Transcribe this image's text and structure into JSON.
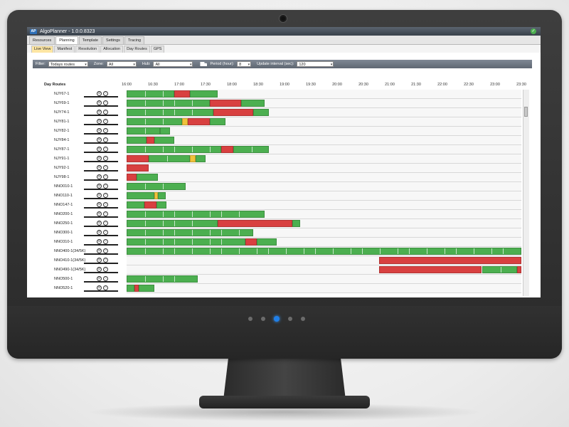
{
  "app": {
    "title": "AlgoPlanner - 1.0.0.8323",
    "logo_text": "AP"
  },
  "main_tabs": [
    {
      "label": "Resources",
      "active": false
    },
    {
      "label": "Planning",
      "active": true
    },
    {
      "label": "Template",
      "active": false
    },
    {
      "label": "Settings",
      "active": false
    },
    {
      "label": "Tracing",
      "active": false
    }
  ],
  "sub_tabs": [
    {
      "label": "Live View",
      "active": true
    },
    {
      "label": "Manifest",
      "active": false
    },
    {
      "label": "Resolution",
      "active": false
    },
    {
      "label": "Allocation",
      "active": false
    },
    {
      "label": "Day Routes",
      "active": false
    },
    {
      "label": "GPS",
      "active": false
    }
  ],
  "filters": {
    "filter_label": "Filter:",
    "filter_value": "Todays routes",
    "zone_label": "Zone:",
    "zone_value": "All",
    "hub_label": "Hub:",
    "hub_value": "All",
    "period_label": "Period (hour):",
    "period_value": "8",
    "interval_label": "Update interval (sec):",
    "interval_value": "120"
  },
  "grid": {
    "header_label": "Day Routes",
    "time_axis": [
      "16:00",
      "16:30",
      "17:00",
      "17:30",
      "18:00",
      "18:30",
      "19:00",
      "19:30",
      "20:00",
      "20:30",
      "21:00",
      "21:30",
      "22:00",
      "22:30",
      "23:00",
      "23:30"
    ],
    "colors": {
      "on_time": "#4caf50",
      "late": "#d84040",
      "warning": "#f0c23a",
      "idle": "#b0b0b0"
    }
  },
  "routes": [
    {
      "name": "NJY67-1",
      "segments": [
        [
          0,
          0.12,
          "g"
        ],
        [
          0.12,
          0.16,
          "r"
        ],
        [
          0.16,
          0.23,
          "g"
        ]
      ]
    },
    {
      "name": "NJY69-1",
      "segments": [
        [
          0,
          0.21,
          "g"
        ],
        [
          0.21,
          0.29,
          "r"
        ],
        [
          0.29,
          0.35,
          "g"
        ]
      ]
    },
    {
      "name": "NJY74-1",
      "segments": [
        [
          0,
          0.22,
          "g"
        ],
        [
          0.22,
          0.32,
          "r"
        ],
        [
          0.32,
          0.36,
          "g"
        ]
      ]
    },
    {
      "name": "NJY81-1",
      "segments": [
        [
          0,
          0.14,
          "g"
        ],
        [
          0.14,
          0.155,
          "y"
        ],
        [
          0.155,
          0.21,
          "r"
        ],
        [
          0.21,
          0.25,
          "g"
        ]
      ]
    },
    {
      "name": "NJY82-1",
      "segments": [
        [
          0,
          0.085,
          "g"
        ],
        [
          0.085,
          0.11,
          "g"
        ]
      ]
    },
    {
      "name": "NJY84-1",
      "segments": [
        [
          0,
          0.05,
          "g"
        ],
        [
          0.05,
          0.07,
          "r"
        ],
        [
          0.07,
          0.12,
          "g"
        ]
      ]
    },
    {
      "name": "NJY87-1",
      "segments": [
        [
          0,
          0.24,
          "g"
        ],
        [
          0.24,
          0.27,
          "r"
        ],
        [
          0.27,
          0.36,
          "g"
        ]
      ]
    },
    {
      "name": "NJY91-1",
      "segments": [
        [
          0,
          0.055,
          "r"
        ],
        [
          0.055,
          0.16,
          "g"
        ],
        [
          0.16,
          0.175,
          "y"
        ],
        [
          0.175,
          0.2,
          "g"
        ]
      ]
    },
    {
      "name": "NJY92-1",
      "segments": [
        [
          0,
          0.055,
          "r"
        ]
      ]
    },
    {
      "name": "NJY98-1",
      "segments": [
        [
          0,
          0.025,
          "r"
        ],
        [
          0.025,
          0.08,
          "g"
        ]
      ]
    },
    {
      "name": "NNO010-1",
      "segments": [
        [
          0,
          0.15,
          "g"
        ]
      ]
    },
    {
      "name": "NNO110-1",
      "segments": [
        [
          0,
          0.07,
          "g"
        ],
        [
          0.07,
          0.08,
          "y"
        ],
        [
          0.08,
          0.1,
          "g"
        ]
      ]
    },
    {
      "name": "NNO147-1",
      "segments": [
        [
          0,
          0.045,
          "g"
        ],
        [
          0.045,
          0.075,
          "r"
        ],
        [
          0.075,
          0.1,
          "g"
        ]
      ]
    },
    {
      "name": "NNO200-1",
      "segments": [
        [
          0,
          0.35,
          "g"
        ]
      ]
    },
    {
      "name": "NNO250-1",
      "segments": [
        [
          0,
          0.23,
          "g"
        ],
        [
          0.23,
          0.42,
          "r"
        ],
        [
          0.42,
          0.44,
          "g"
        ]
      ]
    },
    {
      "name": "NNO300-1",
      "segments": [
        [
          0,
          0.32,
          "g"
        ]
      ]
    },
    {
      "name": "NNO310-1",
      "segments": [
        [
          0,
          0.3,
          "g"
        ],
        [
          0.3,
          0.33,
          "r"
        ],
        [
          0.33,
          0.38,
          "g"
        ]
      ]
    },
    {
      "name": "NNO400-1(34/5K)",
      "segments": [
        [
          0,
          1,
          "g"
        ]
      ]
    },
    {
      "name": "NNO410-1(34/5K)",
      "segments": [
        [
          0.64,
          1,
          "r"
        ]
      ]
    },
    {
      "name": "NNO490-1(34/5K)",
      "segments": [
        [
          0.64,
          0.9,
          "r"
        ],
        [
          0.9,
          0.99,
          "g"
        ],
        [
          0.99,
          1,
          "r"
        ]
      ]
    },
    {
      "name": "NNO500-1",
      "segments": [
        [
          0,
          0.18,
          "g"
        ]
      ]
    },
    {
      "name": "NNO520-1",
      "segments": [
        [
          0,
          0.02,
          "g"
        ],
        [
          0.02,
          0.03,
          "r"
        ],
        [
          0.03,
          0.07,
          "g"
        ]
      ]
    }
  ]
}
